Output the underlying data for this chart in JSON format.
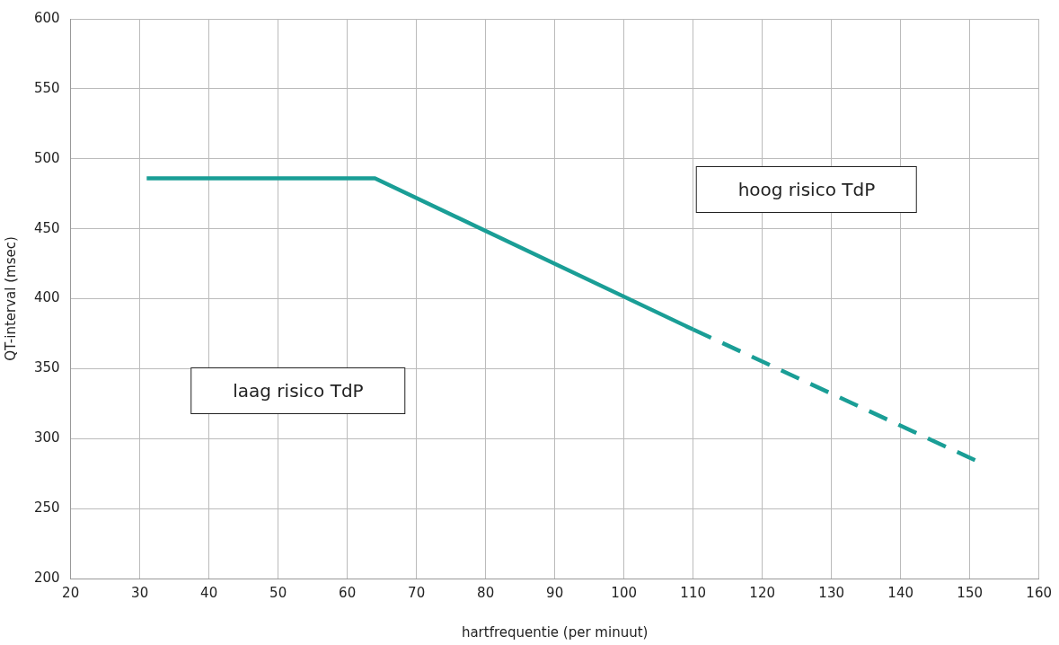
{
  "chart_data": {
    "type": "line",
    "xlabel": "hartfrequentie (per minuut)",
    "ylabel": "QT-interval (msec)",
    "series": [
      {
        "color": "#1a9e96",
        "x": [
          31,
          64,
          110
        ],
        "values": [
          486,
          486,
          378
        ],
        "line_style": "solid"
      },
      {
        "color": "#1a9e96",
        "x": [
          110,
          151
        ],
        "values": [
          378,
          284
        ],
        "line_style": "dashed"
      }
    ],
    "xlim": [
      20,
      160
    ],
    "xticks": [
      20,
      30,
      40,
      50,
      60,
      70,
      80,
      90,
      100,
      110,
      120,
      130,
      140,
      150,
      160
    ],
    "ylim": [
      200,
      600
    ],
    "yticks": [
      200,
      250,
      300,
      350,
      400,
      450,
      500,
      550,
      600
    ],
    "grid": true,
    "legend": false,
    "marker": "none",
    "annotations": [
      "laag risico TdP",
      "hoog risico TdP"
    ]
  }
}
